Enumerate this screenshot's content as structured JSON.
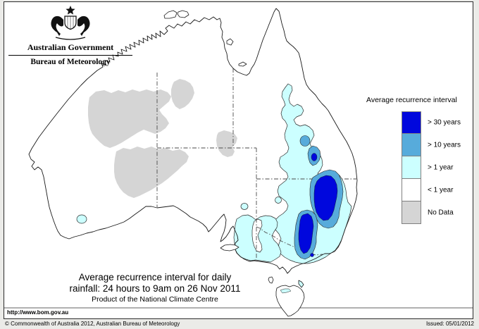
{
  "header": {
    "government": "Australian Government",
    "bureau": "Bureau of Meteorology"
  },
  "legend": {
    "title": "Average recurrence interval",
    "items": [
      {
        "label": "> 30 years",
        "color": "#0007DD"
      },
      {
        "label": "> 10 years",
        "color": "#57ABDB"
      },
      {
        "label": "> 1 year",
        "color": "#CCFFFF"
      },
      {
        "label": "< 1 year",
        "color": "#FFFFFF"
      },
      {
        "label": "No Data",
        "color": "#D5D5D5"
      }
    ]
  },
  "map_caption": {
    "line1": "Average recurrence interval for daily",
    "line2": "rainfall: 24 hours to 9am on 26 Nov 2011",
    "line3": "Product of the National Climate Centre"
  },
  "footer": {
    "url": "http://www.bom.gov.au",
    "copyright": "© Commonwealth of Australia 2012, Australian Bureau of Meteorology",
    "issued": "Issued: 05/01/2012"
  }
}
